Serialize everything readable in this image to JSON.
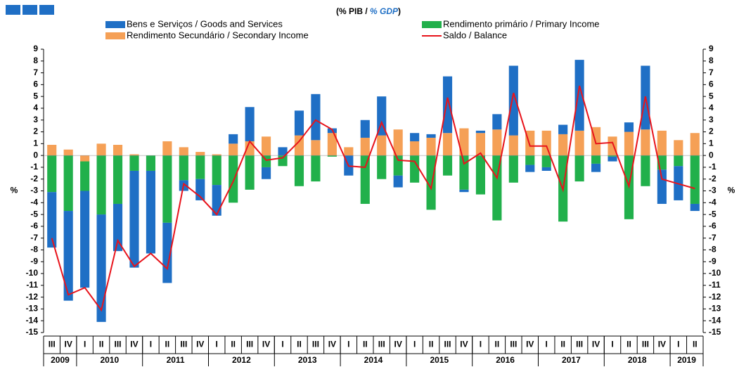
{
  "chart_data": {
    "type": "stacked_bar_line",
    "subtitle": [
      "(% PIB / ",
      "% GDP",
      ")"
    ],
    "ylabel": "%",
    "y2label": "%",
    "categories": [
      "III",
      "IV",
      "I",
      "II",
      "III",
      "IV",
      "I",
      "II",
      "III",
      "IV",
      "I",
      "II",
      "III",
      "IV",
      "I",
      "II",
      "III",
      "IV",
      "I",
      "II",
      "III",
      "IV",
      "I",
      "II",
      "III",
      "IV",
      "I",
      "II",
      "III",
      "IV",
      "I",
      "II",
      "III",
      "IV",
      "I",
      "II",
      "III",
      "IV",
      "I",
      "II"
    ],
    "years": [
      "2009",
      "2010",
      "2011",
      "2012",
      "2013",
      "2014",
      "2015",
      "2016",
      "2017",
      "2018",
      "2019"
    ],
    "series": [
      {
        "name": "Bens e Serviços / Goods and Services",
        "color": "#1f6fc5",
        "kind": "bar",
        "values": [
          -4.7,
          -7.6,
          -8.2,
          -9.1,
          -4.0,
          -8.2,
          -7.0,
          -5.1,
          -0.9,
          -1.8,
          -2.6,
          0.8,
          2.9,
          -1.0,
          0.7,
          2.1,
          3.9,
          0.4,
          -1.7,
          1.5,
          3.3,
          -1.0,
          0.7,
          0.3,
          4.8,
          -0.2,
          0.2,
          1.3,
          5.9,
          -0.6,
          -0.3,
          0.8,
          6.0,
          -0.7,
          -0.4,
          0.8,
          5.4,
          -2.9,
          -2.9,
          -0.6
        ]
      },
      {
        "name": "Rendimento primário / Primary Income",
        "color": "#21b04b",
        "kind": "bar",
        "values": [
          -3.1,
          -4.7,
          -2.5,
          -5.0,
          -4.1,
          -1.3,
          -1.3,
          -5.7,
          -2.1,
          -2.0,
          -2.5,
          -4.0,
          -2.9,
          -1.0,
          -0.9,
          -2.6,
          -2.2,
          -0.1,
          0,
          -4.1,
          -2.0,
          -1.7,
          -2.3,
          -4.6,
          -1.7,
          -2.9,
          -3.3,
          -5.5,
          -2.3,
          -0.8,
          -1.0,
          -5.6,
          -2.2,
          -0.7,
          -0.1,
          -5.4,
          -2.6,
          -1.2,
          -0.9,
          -4.1
        ]
      },
      {
        "name": "Rendimento Secundário / Secondary Income",
        "color": "#f5a056",
        "kind": "bar",
        "values": [
          0.9,
          0.5,
          -0.5,
          1.0,
          0.9,
          0.1,
          0,
          1.2,
          0.7,
          0.3,
          0.1,
          1.0,
          1.2,
          1.6,
          0,
          1.7,
          1.3,
          1.9,
          0.7,
          1.5,
          1.7,
          2.2,
          1.2,
          1.5,
          1.9,
          2.3,
          1.9,
          2.2,
          1.7,
          2.1,
          2.1,
          1.8,
          2.1,
          2.4,
          1.6,
          2.0,
          2.2,
          2.1,
          1.3,
          1.9
        ]
      },
      {
        "name": "Saldo / Balance",
        "color": "#e8131b",
        "kind": "line",
        "values": [
          -7.0,
          -11.8,
          -11.2,
          -13.1,
          -7.2,
          -9.4,
          -8.3,
          -9.6,
          -2.4,
          -3.5,
          -5.0,
          -2.2,
          1.2,
          -0.4,
          -0.2,
          1.2,
          3.0,
          2.2,
          -0.9,
          -1.0,
          2.8,
          -0.4,
          -0.5,
          -2.8,
          4.9,
          -0.7,
          0.2,
          -1.9,
          5.3,
          0.8,
          0.8,
          -2.9,
          5.9,
          1.0,
          1.1,
          -2.6,
          5.0,
          -2.0,
          -2.4,
          -2.8
        ]
      }
    ],
    "ylim": [
      -15,
      9
    ],
    "yticks": [
      -15,
      -14,
      -13,
      -12,
      -11,
      -10,
      -9,
      -8,
      -7,
      -6,
      -5,
      -4,
      -3,
      -2,
      -1,
      0,
      1,
      2,
      3,
      4,
      5,
      6,
      7,
      8,
      9
    ],
    "y2lim": [
      -15,
      9
    ],
    "y2ticks": [
      -15,
      -14,
      -13,
      -12,
      -11,
      -10,
      -9,
      -8,
      -7,
      -6,
      -5,
      -4,
      -3,
      -2,
      -1,
      0,
      1,
      2,
      3,
      4,
      5,
      6,
      7,
      8,
      9
    ],
    "grid": false
  }
}
